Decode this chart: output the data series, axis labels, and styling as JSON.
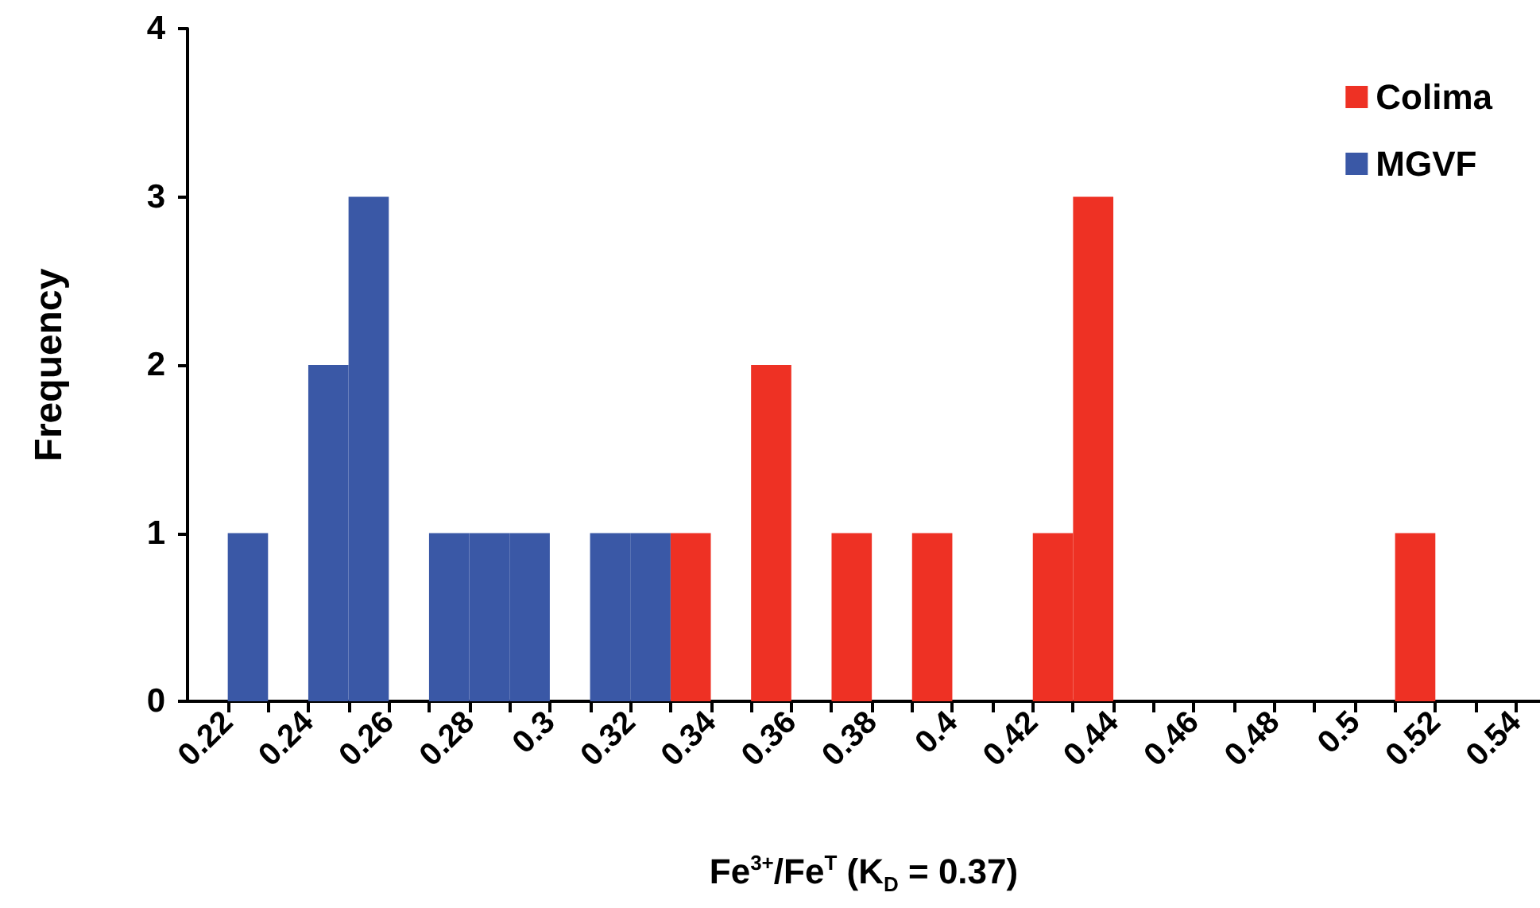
{
  "chart_data": {
    "type": "histogram",
    "xlabel": "Fe$^{3+}$/Fe$^{T}$ (K$_{D}$ = 0.37)",
    "ylabel": "Frequency",
    "bins": [
      0.22,
      0.23,
      0.24,
      0.25,
      0.26,
      0.27,
      0.28,
      0.29,
      0.3,
      0.31,
      0.32,
      0.33,
      0.34,
      0.35,
      0.36,
      0.37,
      0.38,
      0.39,
      0.4,
      0.41,
      0.42,
      0.43,
      0.44,
      0.45,
      0.46,
      0.47,
      0.48,
      0.49,
      0.5,
      0.51,
      0.52
    ],
    "series": [
      {
        "name": "Colima",
        "color": "#ee3124",
        "values": [
          0,
          0,
          0,
          0,
          0,
          0,
          0,
          0,
          0,
          0,
          0,
          1,
          0,
          2,
          0,
          1,
          0,
          1,
          0,
          0,
          1,
          3,
          0,
          0,
          0,
          0,
          0,
          0,
          0,
          1
        ]
      },
      {
        "name": "MGVF",
        "color": "#3a58a6",
        "values": [
          1,
          0,
          2,
          3,
          0,
          1,
          1,
          1,
          0,
          1,
          1,
          0,
          0,
          0,
          0,
          0,
          0,
          0,
          0,
          0,
          0,
          0,
          0,
          0,
          0,
          0,
          0,
          0,
          0,
          0
        ]
      }
    ],
    "xlim": [
      0.21,
      0.546
    ],
    "ylim": [
      0,
      4
    ],
    "yticks": [
      0,
      1,
      2,
      3,
      4
    ],
    "xticks": [
      0.22,
      {
        "value": 0.23,
        "label": null
      },
      0.24,
      {
        "value": 0.25,
        "label": null
      },
      0.26,
      {
        "value": 0.27,
        "label": null
      },
      0.28,
      {
        "value": 0.29,
        "label": null
      },
      0.3,
      {
        "value": 0.31,
        "label": null
      },
      0.32,
      {
        "value": 0.33,
        "label": null
      },
      0.34,
      {
        "value": 0.35,
        "label": null
      },
      0.36,
      {
        "value": 0.37,
        "label": null
      },
      0.38,
      {
        "value": 0.39,
        "label": null
      },
      0.4,
      {
        "value": 0.41,
        "label": null
      },
      0.42,
      {
        "value": 0.43,
        "label": null
      },
      0.44,
      {
        "value": 0.45,
        "label": null
      },
      0.46,
      {
        "value": 0.47,
        "label": null
      },
      0.48,
      {
        "value": 0.49,
        "label": null
      },
      0.5,
      {
        "value": 0.51,
        "label": null
      },
      0.52,
      {
        "value": 0.53,
        "label": null
      },
      0.54
    ],
    "grid": false,
    "legend": "top right"
  }
}
